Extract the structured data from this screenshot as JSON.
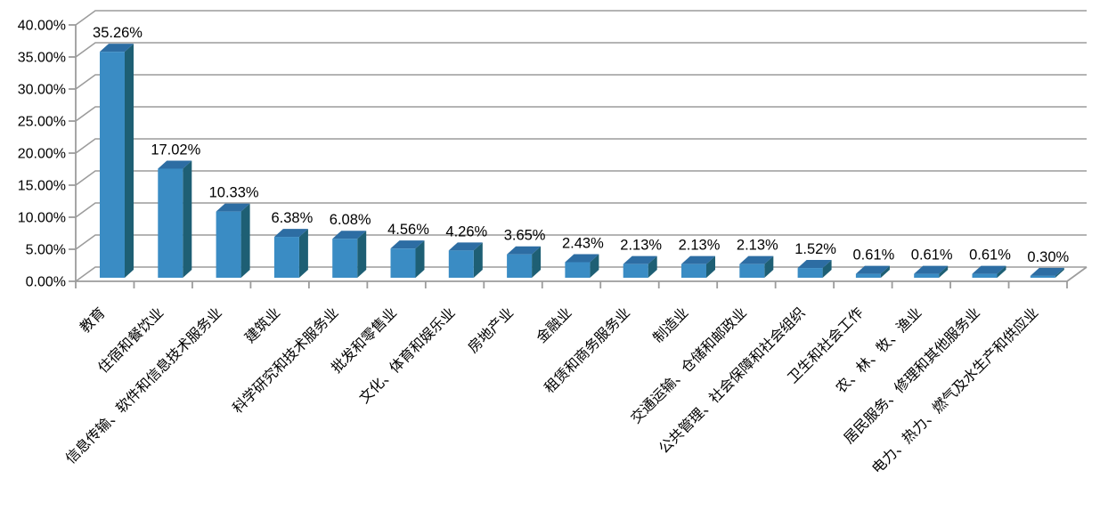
{
  "chart_data": {
    "type": "bar",
    "style": "3d-clustered-column",
    "title": "",
    "xlabel": "",
    "ylabel": "",
    "ylim": [
      0,
      40
    ],
    "ytick_step": 5,
    "ytick_labels": [
      "0.00%",
      "5.00%",
      "10.00%",
      "15.00%",
      "20.00%",
      "25.00%",
      "30.00%",
      "35.00%",
      "40.00%"
    ],
    "grid": true,
    "legend": "none",
    "categories": [
      "教育",
      "住宿和餐饮业",
      "信息传输、软件和信息技术服务业",
      "建筑业",
      "科学研究和技术服务业",
      "批发和零售业",
      "文化、体育和娱乐业",
      "房地产业",
      "金融业",
      "租赁和商务服务业",
      "制造业",
      "交通运输、仓储和邮政业",
      "公共管理、社会保障和社会组织",
      "卫生和社会工作",
      "农、林、牧、渔业",
      "居民服务、修理和其他服务业",
      "电力、热力、燃气及水生产和供应业"
    ],
    "values": [
      35.26,
      17.02,
      10.33,
      6.38,
      6.08,
      4.56,
      4.26,
      3.65,
      2.43,
      2.13,
      2.13,
      2.13,
      1.52,
      0.61,
      0.61,
      0.61,
      0.3
    ],
    "value_labels": [
      "35.26%",
      "17.02%",
      "10.33%",
      "6.38%",
      "6.08%",
      "4.56%",
      "4.26%",
      "3.65%",
      "2.43%",
      "2.13%",
      "2.13%",
      "2.13%",
      "1.52%",
      "0.61%",
      "0.61%",
      "0.61%",
      "0.30%"
    ],
    "colors": {
      "bar_front": "#3A8CC4",
      "bar_top": "#2D6DA3",
      "bar_side": "#1E5F74",
      "gridline": "#9C9C9C",
      "axis": "#9C9C9C",
      "text": "#000000",
      "background": "#FFFFFF"
    }
  }
}
